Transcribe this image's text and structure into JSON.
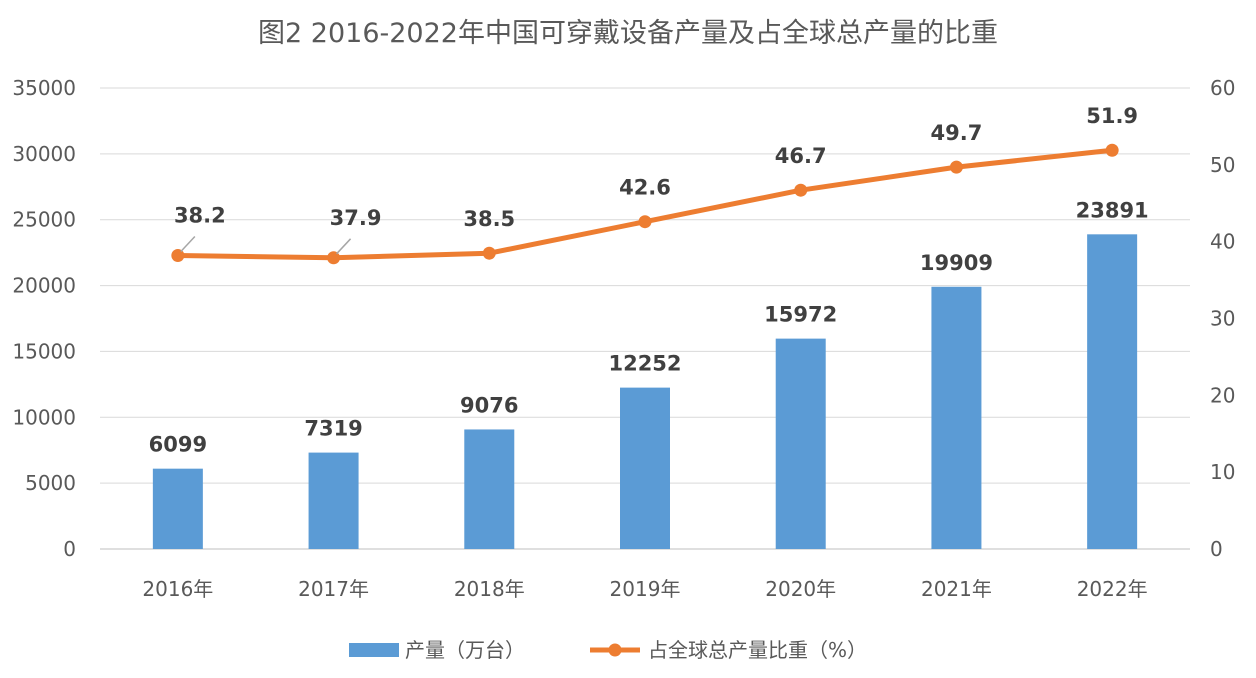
{
  "chart_data": {
    "type": "bar+line",
    "title": "图2 2016-2022年中国可穿戴设备产量及占全球总产量的比重",
    "categories": [
      "2016年",
      "2017年",
      "2018年",
      "2019年",
      "2020年",
      "2021年",
      "2022年"
    ],
    "series": [
      {
        "name": "产量（万台）",
        "type": "bar",
        "axis": "left",
        "color": "#5b9bd5",
        "values": [
          6099,
          7319,
          9076,
          12252,
          15972,
          19909,
          23891
        ]
      },
      {
        "name": "占全球总产量比重（%）",
        "type": "line",
        "axis": "right",
        "color": "#ed7d31",
        "values": [
          38.2,
          37.9,
          38.5,
          42.6,
          46.7,
          49.7,
          51.9
        ]
      }
    ],
    "left_axis": {
      "ylim": [
        0,
        35000
      ],
      "ticks": [
        0,
        5000,
        10000,
        15000,
        20000,
        25000,
        30000,
        35000
      ]
    },
    "right_axis": {
      "ylim": [
        0,
        60
      ],
      "ticks": [
        0,
        10,
        20,
        30,
        40,
        50,
        60
      ]
    },
    "grid": true,
    "legend": "bottom"
  }
}
